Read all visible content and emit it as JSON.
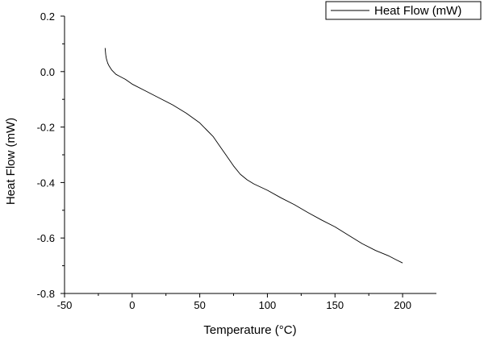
{
  "chart_data": {
    "type": "line",
    "xlabel": "Temperature (°C)",
    "ylabel": "Heat Flow (mW)",
    "xlim": [
      -50,
      225
    ],
    "ylim": [
      -0.8,
      0.2
    ],
    "x_ticks": [
      -50,
      0,
      50,
      100,
      150,
      200
    ],
    "x_tick_labels": [
      "-50",
      "0",
      "50",
      "100",
      "150",
      "200"
    ],
    "y_ticks": [
      -0.8,
      -0.6,
      -0.4,
      -0.2,
      0.0,
      0.2
    ],
    "y_tick_labels": [
      "-0.8",
      "-0.6",
      "-0.4",
      "-0.2",
      "0.0",
      "0.2"
    ],
    "grid": false,
    "legend_position": "top-right",
    "series": [
      {
        "name": "Heat Flow (mW)",
        "color": "#000000",
        "points": [
          [
            -20,
            0.085
          ],
          [
            -19.5,
            0.06
          ],
          [
            -19,
            0.045
          ],
          [
            -18,
            0.03
          ],
          [
            -17,
            0.02
          ],
          [
            -15,
            0.005
          ],
          [
            -12,
            -0.01
          ],
          [
            -10,
            -0.015
          ],
          [
            -5,
            -0.028
          ],
          [
            0,
            -0.045
          ],
          [
            10,
            -0.07
          ],
          [
            20,
            -0.095
          ],
          [
            30,
            -0.12
          ],
          [
            40,
            -0.15
          ],
          [
            50,
            -0.185
          ],
          [
            55,
            -0.21
          ],
          [
            60,
            -0.235
          ],
          [
            65,
            -0.27
          ],
          [
            70,
            -0.305
          ],
          [
            75,
            -0.34
          ],
          [
            80,
            -0.37
          ],
          [
            85,
            -0.39
          ],
          [
            90,
            -0.405
          ],
          [
            100,
            -0.428
          ],
          [
            110,
            -0.455
          ],
          [
            120,
            -0.48
          ],
          [
            130,
            -0.508
          ],
          [
            140,
            -0.535
          ],
          [
            150,
            -0.56
          ],
          [
            160,
            -0.59
          ],
          [
            170,
            -0.62
          ],
          [
            180,
            -0.645
          ],
          [
            190,
            -0.665
          ],
          [
            195,
            -0.678
          ],
          [
            200,
            -0.69
          ]
        ]
      }
    ]
  }
}
